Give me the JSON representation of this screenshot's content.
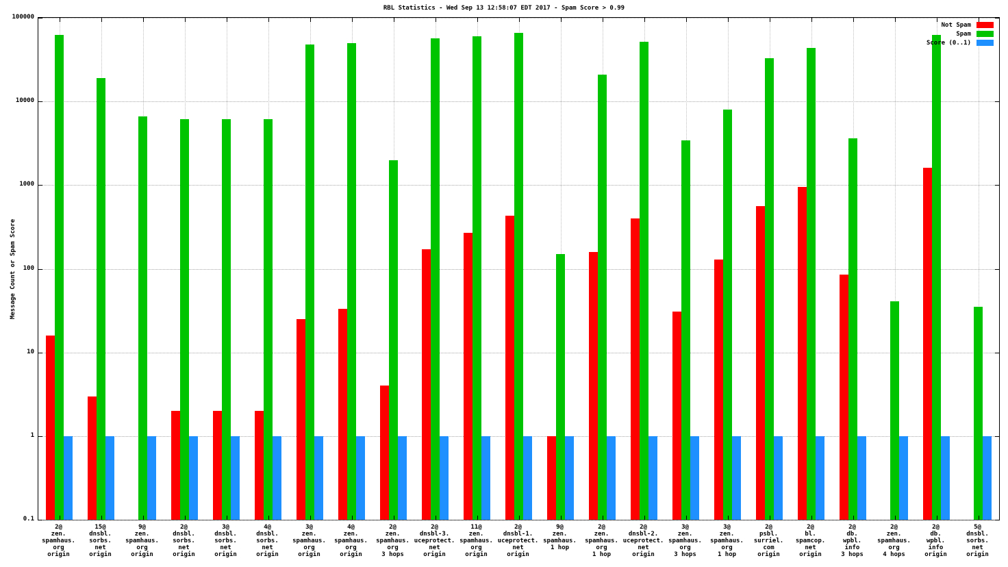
{
  "chart_data": {
    "type": "bar",
    "title": "RBL Statistics - Wed Sep 13 12:58:07 EDT 2017 - Spam Score > 0.99",
    "ylabel": "Message Count or Spam Score",
    "yscale": "log",
    "ylim": [
      0.1,
      100000
    ],
    "ytick_labels": [
      "0.1",
      "1",
      "10",
      "100",
      "1000",
      "10000",
      "100000"
    ],
    "ytick_values": [
      0.1,
      1,
      10,
      100,
      1000,
      10000,
      100000
    ],
    "grid": true,
    "legend_position": "top-right",
    "legend": [
      {
        "label": "Not Spam",
        "color": "#ff0000"
      },
      {
        "label": "Spam",
        "color": "#00c400"
      },
      {
        "label": "Score (0..1)",
        "color": "#1e90ff"
      }
    ],
    "categories": [
      [
        "2@",
        "zen.",
        "spamhaus.",
        "org",
        "origin"
      ],
      [
        "15@",
        "dnsbl.",
        "sorbs.",
        "net",
        "origin"
      ],
      [
        "9@",
        "zen.",
        "spamhaus.",
        "org",
        "origin"
      ],
      [
        "2@",
        "dnsbl.",
        "sorbs.",
        "net",
        "origin"
      ],
      [
        "3@",
        "dnsbl.",
        "sorbs.",
        "net",
        "origin"
      ],
      [
        "4@",
        "dnsbl.",
        "sorbs.",
        "net",
        "origin"
      ],
      [
        "3@",
        "zen.",
        "spamhaus.",
        "org",
        "origin"
      ],
      [
        "4@",
        "zen.",
        "spamhaus.",
        "org",
        "origin"
      ],
      [
        "2@",
        "zen.",
        "spamhaus.",
        "org",
        "3 hops"
      ],
      [
        "2@",
        "dnsbl-3.",
        "uceprotect.",
        "net",
        "origin"
      ],
      [
        "11@",
        "zen.",
        "spamhaus.",
        "org",
        "origin"
      ],
      [
        "2@",
        "dnsbl-1.",
        "uceprotect.",
        "net",
        "origin"
      ],
      [
        "9@",
        "zen.",
        "spamhaus.",
        "1 hop"
      ],
      [
        "2@",
        "zen.",
        "spamhaus.",
        "org",
        "1 hop"
      ],
      [
        "2@",
        "dnsbl-2.",
        "uceprotect.",
        "net",
        "origin"
      ],
      [
        "3@",
        "zen.",
        "spamhaus.",
        "org",
        "3 hops"
      ],
      [
        "3@",
        "zen.",
        "spamhaus.",
        "org",
        "1 hop"
      ],
      [
        "2@",
        "psbl.",
        "surriel.",
        "com",
        "origin"
      ],
      [
        "2@",
        "bl.",
        "spamcop.",
        "net",
        "origin"
      ],
      [
        "2@",
        "db.",
        "wpbl.",
        "info",
        "3 hops"
      ],
      [
        "2@",
        "zen.",
        "spamhaus.",
        "org",
        "4 hops"
      ],
      [
        "2@",
        "db.",
        "wpbl.",
        "info",
        "origin"
      ],
      [
        "5@",
        "dnsbl.",
        "sorbs.",
        "net",
        "origin"
      ]
    ],
    "series": [
      {
        "name": "Not Spam",
        "color": "#ff0000",
        "values": [
          16,
          3,
          0,
          2,
          2,
          2,
          25,
          33,
          4,
          170,
          270,
          430,
          1,
          160,
          400,
          31,
          130,
          560,
          950,
          85,
          0,
          1600,
          0
        ]
      },
      {
        "name": "Spam",
        "color": "#00c400",
        "values": [
          63000,
          19000,
          6600,
          6200,
          6200,
          6200,
          48000,
          50000,
          2000,
          57000,
          60000,
          66000,
          150,
          21000,
          52000,
          3400,
          8000,
          33000,
          44000,
          3600,
          41,
          62000,
          35
        ]
      },
      {
        "name": "Score (0..1)",
        "color": "#1e90ff",
        "values": [
          1,
          1,
          1,
          1,
          1,
          1,
          1,
          1,
          1,
          1,
          1,
          1,
          1,
          1,
          1,
          1,
          1,
          1,
          1,
          1,
          1,
          1,
          1
        ]
      }
    ]
  }
}
